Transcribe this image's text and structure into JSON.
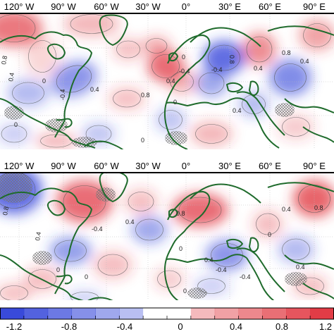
{
  "panels": [
    {
      "id": "top",
      "lon_labels": [
        "120° W",
        "90° W",
        "60° W",
        "30° W",
        "0°",
        "30° E",
        "60° E",
        "90° E"
      ],
      "contour_labels": [
        "0.8",
        "0.4",
        "0",
        "-0.4",
        "0.4",
        "0.8",
        "0.4",
        "0",
        "-0.4",
        "0.8",
        "0.8",
        "0.4",
        "0",
        "0",
        "0",
        "0.4",
        "0.4",
        "-0.4"
      ]
    },
    {
      "id": "bottom",
      "lon_labels": [
        "120° W",
        "90° W",
        "60° W",
        "30° W",
        "0°",
        "30° E",
        "60° E",
        "90° E"
      ],
      "contour_labels": [
        "0.8",
        "0.4",
        "0",
        "-0.4",
        "0.4",
        "0.8",
        "0",
        "0.4",
        "-0.4",
        "0",
        "0.4",
        "0.4",
        "0",
        "-0.4",
        "0.8",
        "0"
      ]
    }
  ],
  "colorbar": {
    "ticks": [
      "-1.2",
      "-0.8",
      "-0.4",
      "0",
      "0.4",
      "0.8",
      "1.2"
    ],
    "range": [
      -1.4,
      1.4
    ],
    "levels": 14,
    "negative_color": "#2d3fd8",
    "positive_color": "#e0303a"
  },
  "coastline_color": "#1f6b2c",
  "hatch_color": "#777777"
}
